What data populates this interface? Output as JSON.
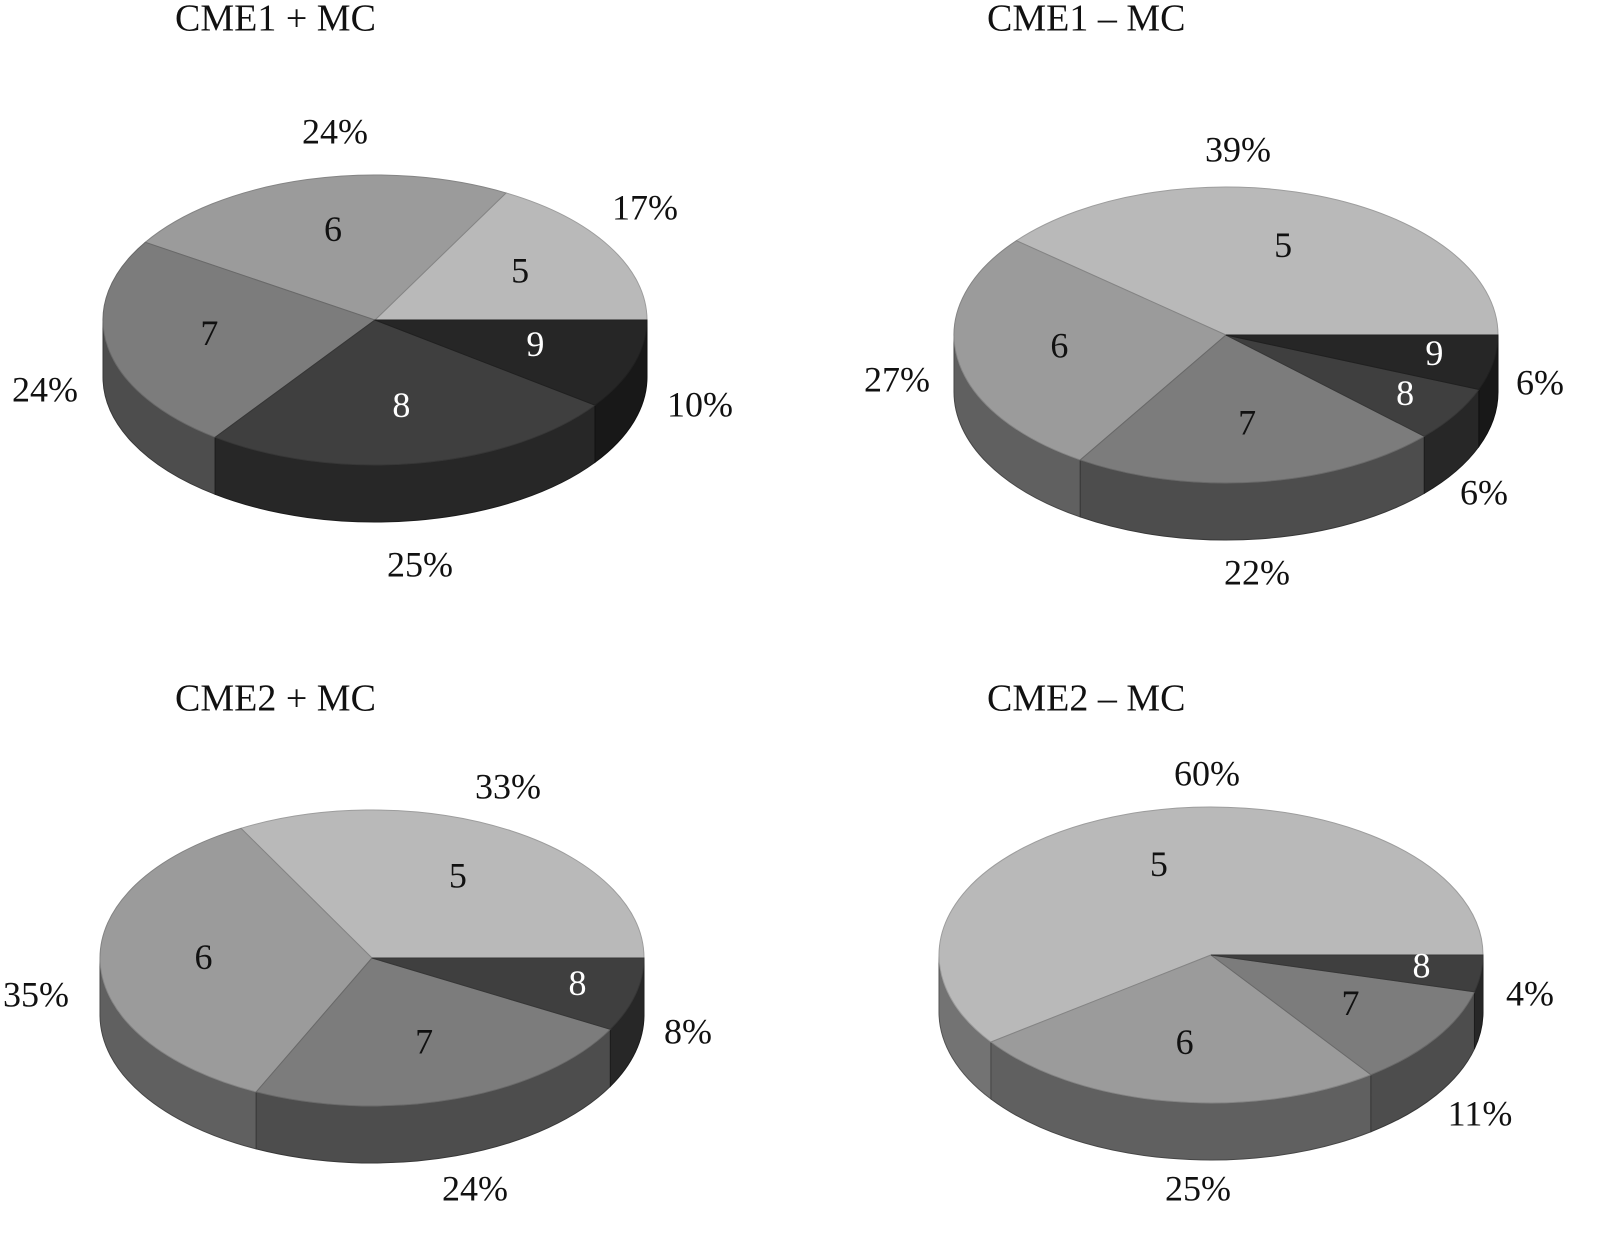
{
  "chart_data": [
    {
      "type": "pie",
      "title": "CME1 + MC",
      "slices": [
        {
          "category": "5",
          "value": 17,
          "label": "17%"
        },
        {
          "category": "6",
          "value": 24,
          "label": "24%"
        },
        {
          "category": "7",
          "value": 24,
          "label": "24%"
        },
        {
          "category": "8",
          "value": 25,
          "label": "25%"
        },
        {
          "category": "9",
          "value": 10,
          "label": "10%"
        }
      ]
    },
    {
      "type": "pie",
      "title": "CME1 – MC",
      "slices": [
        {
          "category": "5",
          "value": 39,
          "label": "39%"
        },
        {
          "category": "6",
          "value": 27,
          "label": "27%"
        },
        {
          "category": "7",
          "value": 22,
          "label": "22%"
        },
        {
          "category": "8",
          "value": 6,
          "label": "6%"
        },
        {
          "category": "9",
          "value": 6,
          "label": "6%"
        }
      ]
    },
    {
      "type": "pie",
      "title": "CME2 + MC",
      "slices": [
        {
          "category": "5",
          "value": 33,
          "label": "33%"
        },
        {
          "category": "6",
          "value": 35,
          "label": "35%"
        },
        {
          "category": "7",
          "value": 24,
          "label": "24%"
        },
        {
          "category": "8",
          "value": 8,
          "label": "8%"
        }
      ]
    },
    {
      "type": "pie",
      "title": "CME2 – MC",
      "slices": [
        {
          "category": "5",
          "value": 60,
          "label": "60%"
        },
        {
          "category": "6",
          "value": 25,
          "label": "25%"
        },
        {
          "category": "7",
          "value": 11,
          "label": "11%"
        },
        {
          "category": "8",
          "value": 4,
          "label": "4%"
        }
      ]
    }
  ],
  "colors": {
    "5": "#b9b9b9",
    "6": "#9b9b9b",
    "7": "#7c7c7c",
    "8": "#3f3f3f",
    "9": "#262626"
  }
}
